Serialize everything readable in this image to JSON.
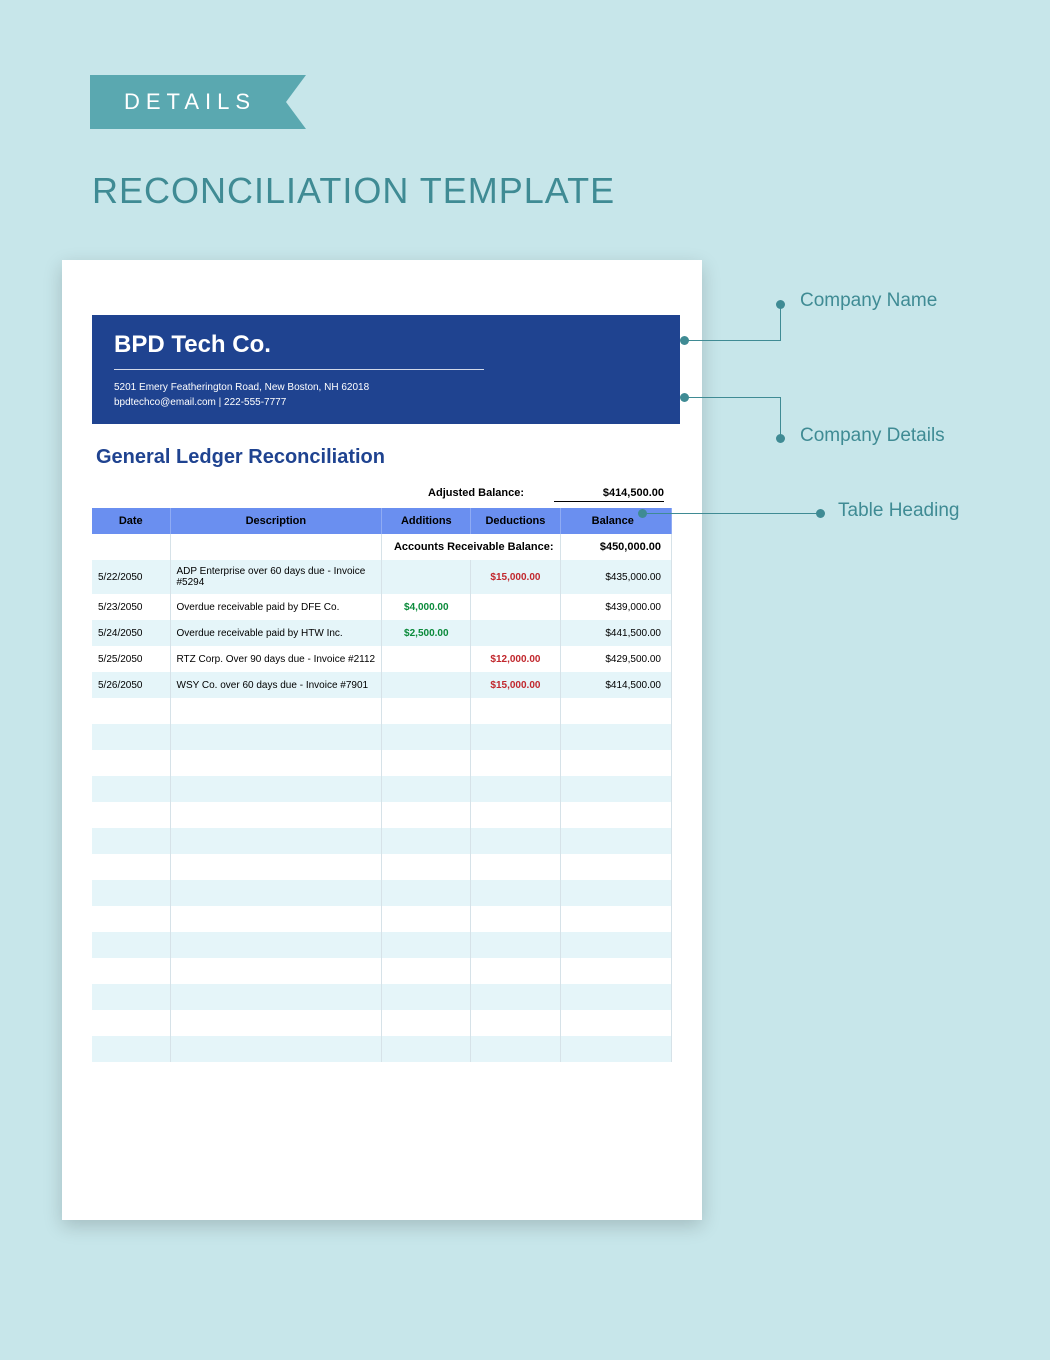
{
  "ribbon_label": "DETAILS",
  "main_title": "RECONCILIATION TEMPLATE",
  "colors": {
    "page_bg": "#c7e6ea",
    "ribbon": "#5aa8b0",
    "title_text": "#3f8b94",
    "header_bar": "#1f4390",
    "table_header": "#6a8ff0",
    "row_alt": "#e5f5f9",
    "addition_text": "#0a8a3a",
    "deduction_text": "#c1272d"
  },
  "company": {
    "name": "BPD Tech Co.",
    "address": "5201 Emery Featherington Road, New Boston, NH 62018",
    "contact": "bpdtechco@email.com | 222-555-7777"
  },
  "section_title": "General Ledger Reconciliation",
  "adjusted_balance": {
    "label": "Adjusted Balance:",
    "value": "$414,500.00"
  },
  "columns": [
    "Date",
    "Description",
    "Additions",
    "Deductions",
    "Balance"
  ],
  "accounts_receivable": {
    "label": "Accounts Receivable Balance:",
    "value": "$450,000.00"
  },
  "rows": [
    {
      "date": "5/22/2050",
      "desc": "ADP Enterprise over 60 days due - Invoice #5294",
      "add": "",
      "ded": "$15,000.00",
      "bal": "$435,000.00"
    },
    {
      "date": "5/23/2050",
      "desc": "Overdue receivable paid by DFE Co.",
      "add": "$4,000.00",
      "ded": "",
      "bal": "$439,000.00"
    },
    {
      "date": "5/24/2050",
      "desc": "Overdue receivable paid by HTW Inc.",
      "add": "$2,500.00",
      "ded": "",
      "bal": "$441,500.00"
    },
    {
      "date": "5/25/2050",
      "desc": "RTZ Corp. Over 90 days due - Invoice #2112",
      "add": "",
      "ded": "$12,000.00",
      "bal": "$429,500.00"
    },
    {
      "date": "5/26/2050",
      "desc": "WSY Co. over 60 days due - Invoice #7901",
      "add": "",
      "ded": "$15,000.00",
      "bal": "$414,500.00"
    }
  ],
  "empty_rows": 14,
  "callouts": {
    "company_name": "Company Name",
    "company_details": "Company Details",
    "table_heading": "Table Heading"
  }
}
